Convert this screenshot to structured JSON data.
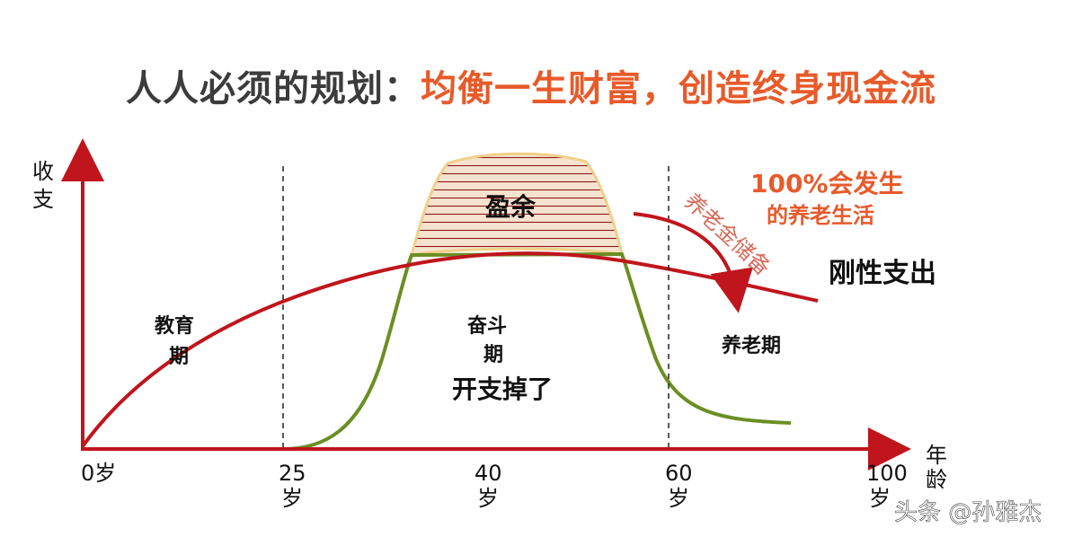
{
  "title": {
    "prefix": "人人必须的规划：",
    "highlight": "均衡一生财富，创造终身现金流"
  },
  "axes": {
    "y_label": [
      "收",
      "支"
    ],
    "x_label": [
      "年",
      "龄"
    ],
    "ticks": [
      {
        "line1": "0岁",
        "line2": ""
      },
      {
        "line1": "25",
        "line2": "岁"
      },
      {
        "line1": "40",
        "line2": "岁"
      },
      {
        "line1": "60",
        "line2": "岁"
      },
      {
        "line1": "100",
        "line2": "岁"
      }
    ]
  },
  "phases": {
    "education": [
      "教育",
      "期"
    ],
    "struggle": [
      "奋斗",
      "期"
    ],
    "retirement": "养老期"
  },
  "labels": {
    "surplus": "盈余",
    "expense_drop": "开支掉了",
    "rigid_expense": "刚性支出",
    "pension_reserve": "养老金储备",
    "retirement_note": [
      "100%会发生",
      "的养老生活"
    ]
  },
  "watermark": "头条 @孙雅杰",
  "colors": {
    "title_dark": "#3c3c3c",
    "title_accent": "#e85a2a",
    "expense_curve": "#c0151c",
    "income_curve": "#6b8e23",
    "surplus_fill": "#f3d3b0",
    "surplus_stripes": "#8b1a1a",
    "axis": "#c0151c",
    "note_orange": "#e85a2a",
    "reserve_text": "#d86a5a"
  }
}
